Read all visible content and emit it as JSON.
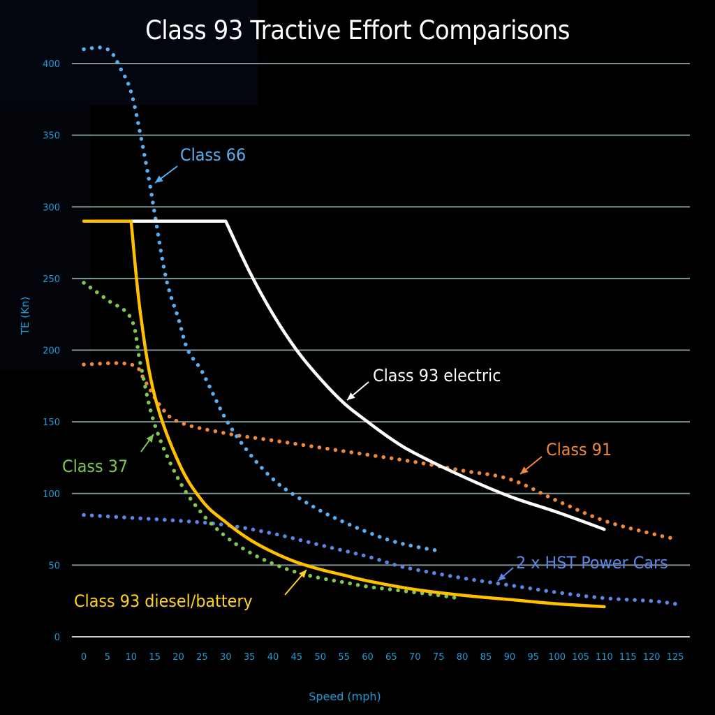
{
  "chart_data": {
    "type": "line",
    "title": "Class 93 Tractive Effort Comparisons",
    "xlabel": "Speed (mph)",
    "ylabel": "TE (Kn)",
    "xlim": [
      0,
      125
    ],
    "ylim": [
      0,
      400
    ],
    "x_ticks": [
      "0",
      "5",
      "10",
      "15",
      "20",
      "25",
      "30",
      "35",
      "40",
      "45",
      "50",
      "55",
      "60",
      "65",
      "70",
      "75",
      "80",
      "85",
      "90",
      "95",
      "100",
      "105",
      "110",
      "115",
      "120",
      "125"
    ],
    "y_ticks": [
      "0",
      "50",
      "100",
      "150",
      "200",
      "250",
      "300",
      "350",
      "400"
    ],
    "grid": "horizontal",
    "colors": {
      "background": "#000000",
      "gridline": "#7f9396",
      "axis_text": "#1e9bd7",
      "title": "#ffffff"
    },
    "series": [
      {
        "name": "Class 93 electric",
        "style": "solid",
        "color": "#ffffff",
        "x": [
          10,
          30,
          35,
          40,
          45,
          50,
          55,
          60,
          65,
          70,
          80,
          90,
          100,
          110
        ],
        "y": [
          290,
          290,
          255,
          225,
          200,
          180,
          163,
          150,
          138,
          128,
          112,
          98,
          87,
          75
        ]
      },
      {
        "name": "Class 93 diesel/battery",
        "style": "solid",
        "color": "#ffc000",
        "x": [
          0,
          10,
          12,
          15,
          20,
          25,
          30,
          35,
          40,
          45,
          50,
          55,
          60,
          70,
          80,
          90,
          100,
          110
        ],
        "y": [
          290,
          290,
          225,
          168,
          122,
          95,
          80,
          68,
          59,
          52,
          47,
          43,
          39,
          33,
          29,
          26,
          23,
          21
        ]
      },
      {
        "name": "Class 66",
        "style": "dotted",
        "color": "#5aaef0",
        "x": [
          0,
          5,
          8,
          10,
          12,
          14,
          15,
          17.4,
          20,
          22,
          25,
          30,
          35,
          40,
          44,
          50,
          55,
          60,
          65,
          70,
          75
        ],
        "y": [
          410,
          410,
          395,
          380,
          350,
          315,
          295,
          250,
          222,
          200,
          185,
          152,
          128,
          110,
          100,
          88,
          80,
          73,
          67,
          63,
          60
        ]
      },
      {
        "name": "Class 37",
        "style": "dotted",
        "color": "#7ec850",
        "x": [
          0,
          5,
          10,
          12,
          15,
          20,
          25,
          30,
          35,
          40,
          45,
          50,
          55,
          60,
          65,
          70,
          75,
          79
        ],
        "y": [
          247,
          235,
          222,
          190,
          148,
          110,
          86,
          70,
          59,
          51,
          45,
          41,
          38,
          35,
          33,
          31,
          29,
          27
        ]
      },
      {
        "name": "Class 91",
        "style": "dotted",
        "color": "#f0883c",
        "x": [
          0,
          10,
          13,
          16,
          20,
          30,
          40,
          50,
          60,
          70,
          80,
          90,
          100,
          110,
          120,
          124
        ],
        "y": [
          190,
          190,
          178,
          162,
          150,
          142,
          137,
          132,
          127,
          122,
          116,
          110,
          95,
          81,
          72,
          69
        ]
      },
      {
        "name": "2 x HST Power Cars",
        "style": "dotted",
        "color": "#5b86e6",
        "x": [
          0,
          10,
          20,
          30,
          40,
          50,
          60,
          66,
          70,
          80,
          90,
          100,
          110,
          120,
          125
        ],
        "y": [
          85,
          83,
          81,
          78,
          72,
          64,
          56,
          50,
          47,
          41,
          36,
          31,
          27,
          25,
          23
        ]
      }
    ],
    "annotations": [
      {
        "text": "Class 66",
        "color": "#5aaef0",
        "target_series": "Class 66"
      },
      {
        "text": "Class 93 electric",
        "color": "#ffffff",
        "target_series": "Class 93 electric"
      },
      {
        "text": "Class 91",
        "color": "#f0883c",
        "target_series": "Class 91"
      },
      {
        "text": "Class 37",
        "color": "#7ec850",
        "target_series": "Class 37"
      },
      {
        "text": "2 x HST Power Cars",
        "color": "#5b86e6",
        "target_series": "2 x HST Power Cars"
      },
      {
        "text": "Class 93 diesel/battery",
        "color": "#ffd21e",
        "target_series": "Class 93 diesel/battery"
      }
    ]
  }
}
